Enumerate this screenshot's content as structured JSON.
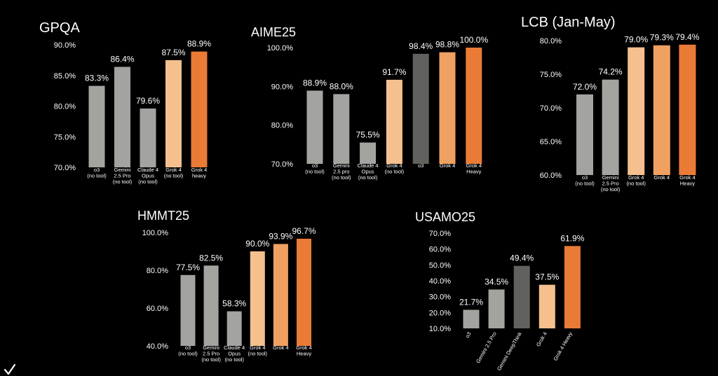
{
  "colors": {
    "background": "#000000",
    "text": "#ffffff",
    "gray": "#a3a49f",
    "dark_gray": "#61625d",
    "light_orange": "#f5c08e",
    "mid_orange": "#f0a162",
    "orange": "#ea7b36"
  },
  "chart_data": [
    {
      "id": "gpqa",
      "type": "bar",
      "title": "GPQA",
      "ylim": [
        70,
        90
      ],
      "yticks": [
        90,
        85,
        80,
        75,
        70
      ],
      "tick_format": "percent1",
      "categories": [
        [
          "o3",
          "(no tool)"
        ],
        [
          "Gemini",
          "2.5 Pro",
          "(no tool)"
        ],
        [
          "Claude 4",
          "Opus",
          "(no tool)"
        ],
        [
          "Grok 4",
          "(no tool)"
        ],
        [
          "Grok 4",
          "heavy"
        ]
      ],
      "values": [
        83.3,
        86.4,
        79.6,
        87.5,
        88.9
      ],
      "value_labels": [
        "83.3%",
        "86.4%",
        "79.6%",
        "87.5%",
        "88.9%"
      ],
      "bar_colors": [
        "gray",
        "gray",
        "gray",
        "light_orange",
        "orange"
      ]
    },
    {
      "id": "aime25",
      "type": "bar",
      "title": "AIME25",
      "ylim": [
        70,
        100
      ],
      "yticks": [
        100,
        90,
        80,
        70
      ],
      "tick_format": "percent1",
      "categories": [
        [
          "o3",
          "(no tool)"
        ],
        [
          "Gemini",
          "2.5 pro",
          "(no tool)"
        ],
        [
          "Claude 4",
          "Opus",
          "(no tool)"
        ],
        [
          "Grok 4",
          "(no tool)"
        ],
        [
          "o3"
        ],
        [
          "Grok 4"
        ],
        [
          "Grok 4",
          "Heavy"
        ]
      ],
      "values": [
        88.9,
        88.0,
        75.5,
        91.7,
        98.4,
        98.8,
        100.0
      ],
      "value_labels": [
        "88.9%",
        "88.0%",
        "75.5%",
        "91.7%",
        "98.4%",
        "98.8%",
        "100.0%"
      ],
      "bar_colors": [
        "gray",
        "gray",
        "gray",
        "light_orange",
        "dark_gray",
        "mid_orange",
        "orange"
      ]
    },
    {
      "id": "lcb",
      "type": "bar",
      "title": "LCB (Jan-May)",
      "ylim": [
        60,
        80
      ],
      "yticks": [
        80,
        75,
        70,
        65,
        60
      ],
      "tick_format": "percent1",
      "categories": [
        [
          "o3",
          "(no tool)"
        ],
        [
          "Gemini",
          "2.5 Pro",
          "(no tool)"
        ],
        [
          "Grok 4",
          "(no tool)"
        ],
        [
          "Grok 4"
        ],
        [
          "Grok 4",
          "Heavy"
        ]
      ],
      "values": [
        72.0,
        74.2,
        79.0,
        79.3,
        79.4
      ],
      "value_labels": [
        "72.0%",
        "74.2%",
        "79.0%",
        "79.3%",
        "79.4%"
      ],
      "bar_colors": [
        "gray",
        "gray",
        "light_orange",
        "mid_orange",
        "orange"
      ]
    },
    {
      "id": "hmmt25",
      "type": "bar",
      "title": "HMMT25",
      "ylim": [
        40,
        100
      ],
      "yticks": [
        100,
        80,
        60,
        40
      ],
      "tick_format": "percent1",
      "categories": [
        [
          "o3",
          "(no tool)"
        ],
        [
          "Gemini",
          "2.5 Pro",
          "(no tool)"
        ],
        [
          "Claude 4",
          "Opus",
          "(no tool)"
        ],
        [
          "Grok 4",
          "(no tool)"
        ],
        [
          "Grok 4"
        ],
        [
          "Grok 4",
          "Heavy"
        ]
      ],
      "values": [
        77.5,
        82.5,
        58.3,
        90.0,
        93.9,
        96.7
      ],
      "value_labels": [
        "77.5%",
        "82.5%",
        "58.3%",
        "90.0%",
        "93.9%",
        "96.7%"
      ],
      "bar_colors": [
        "gray",
        "gray",
        "gray",
        "light_orange",
        "mid_orange",
        "orange"
      ]
    },
    {
      "id": "usamo25",
      "type": "bar",
      "title": "USAMO25",
      "ylim": [
        10,
        70
      ],
      "yticks": [
        70,
        60,
        50,
        40,
        30,
        20,
        10
      ],
      "tick_format": "percent1",
      "rotated_labels": true,
      "categories": [
        [
          "o3"
        ],
        [
          "Gemini 2.5 Pro"
        ],
        [
          "Gemini DeepThink"
        ],
        [
          "Grok 4"
        ],
        [
          "Grok 4 Heavy"
        ]
      ],
      "values": [
        21.7,
        34.5,
        49.4,
        37.5,
        61.9
      ],
      "value_labels": [
        "21.7%",
        "34.5%",
        "49.4%",
        "37.5%",
        "61.9%"
      ],
      "bar_colors": [
        "gray",
        "gray",
        "dark_gray",
        "light_orange",
        "orange"
      ]
    }
  ]
}
